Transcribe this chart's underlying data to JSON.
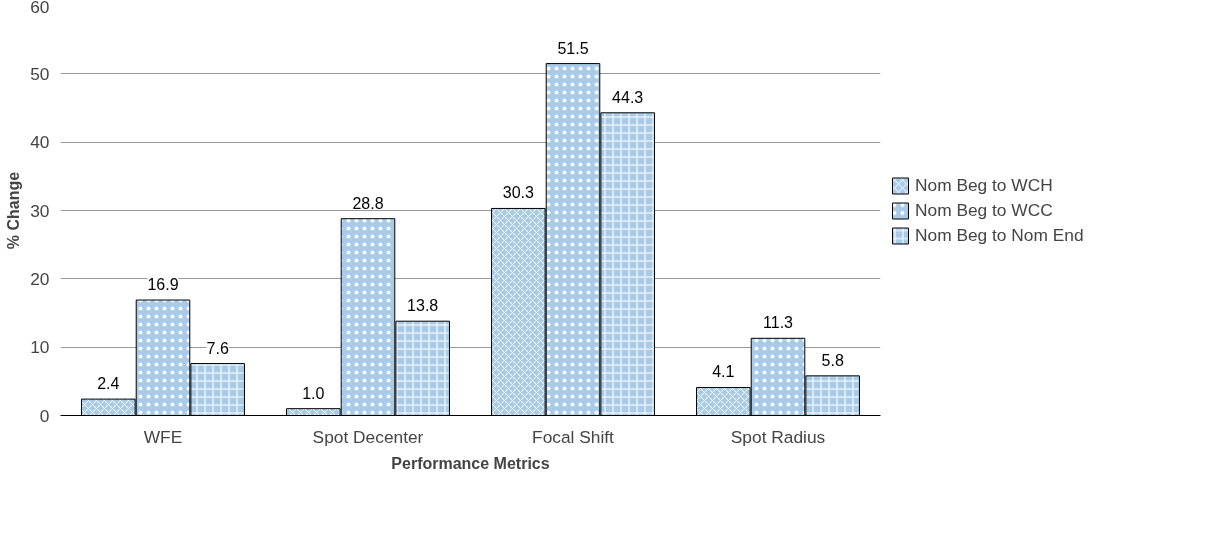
{
  "chart_data": {
    "type": "bar",
    "xlabel": "Performance Metrics",
    "ylabel": "% Change",
    "categories": [
      "WFE",
      "Spot Decenter",
      "Focal Shift",
      "Spot Radius"
    ],
    "series": [
      {
        "name": "Nom Beg to WCH",
        "color": "#a9cbea",
        "values": [
          2.4,
          1.0,
          30.3,
          4.1
        ],
        "value_labels": [
          "2.4",
          "1.0",
          "30.3",
          "4.1"
        ]
      },
      {
        "name": "Nom Beg to WCC",
        "color": "#a9cbea",
        "values": [
          16.9,
          28.8,
          51.5,
          11.3
        ],
        "value_labels": [
          "16.9",
          "28.8",
          "51.5",
          "11.3"
        ]
      },
      {
        "name": "Nom Beg to Nom End",
        "color": "#a9cbea",
        "values": [
          7.6,
          13.8,
          44.3,
          5.8
        ],
        "value_labels": [
          "7.6",
          "13.8",
          "44.3",
          "5.8"
        ]
      }
    ],
    "ylim": [
      0,
      60
    ],
    "yticks": [
      0,
      10,
      20,
      30,
      40,
      50,
      60
    ],
    "grid": "y",
    "legend": "right"
  }
}
